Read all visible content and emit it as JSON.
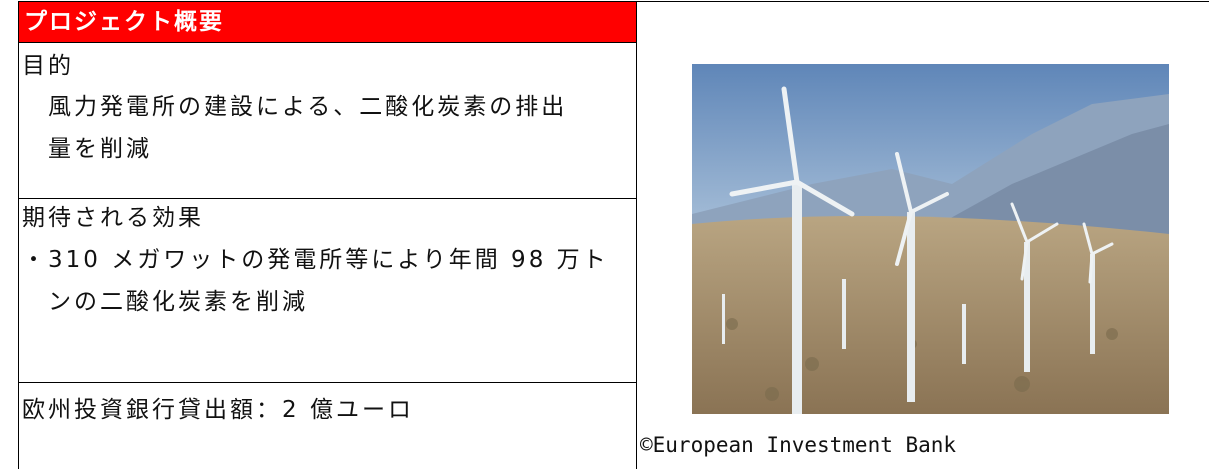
{
  "header": {
    "title": "プロジェクト概要"
  },
  "rows": [
    {
      "label": "目的",
      "lines": [
        "風力発電所の建設による、二酸化炭素の排出",
        "量を削減"
      ]
    },
    {
      "label": "期待される効果",
      "lines": [
        "・310 メガワットの発電所等により年間 98 万ト",
        "ンの二酸化炭素を削減"
      ]
    },
    {
      "label": "欧州投資銀行貸出額：2 億ユーロ"
    }
  ],
  "image": {
    "caption": "©European Investment Bank"
  }
}
